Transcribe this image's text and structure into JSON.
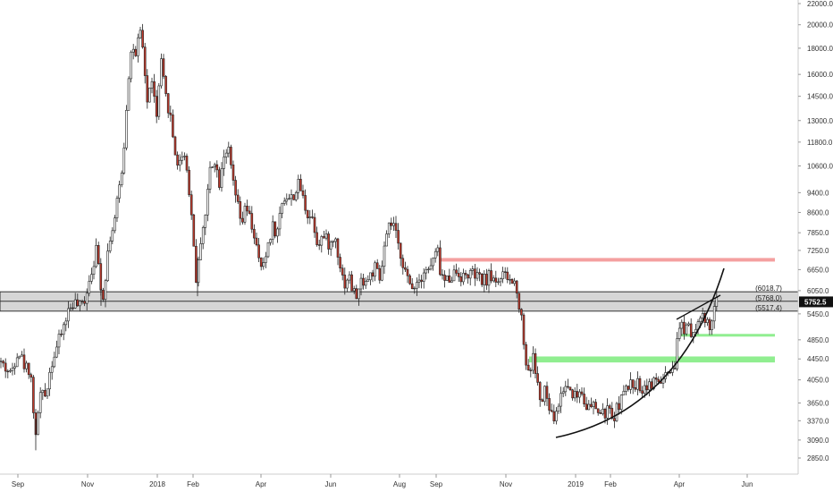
{
  "chart_data": {
    "type": "candlestick",
    "title": "",
    "xlabel": "",
    "ylabel": "",
    "scale": "log",
    "ylim": [
      2650,
      22600
    ],
    "grid": false,
    "x_tick_labels": [
      "Sep",
      "Nov",
      "2018",
      "Feb",
      "Apr",
      "Jun",
      "Aug",
      "Sep",
      "Nov",
      "2019",
      "Feb",
      "Apr",
      "Jun"
    ],
    "y_tick_values": [
      22000,
      20000,
      18000,
      16000,
      14500,
      13000,
      11800,
      10600,
      9400,
      8600,
      7850,
      7250,
      6650,
      6050,
      5450,
      4850,
      4450,
      4050,
      3650,
      3370,
      3090,
      2850
    ],
    "y_tick_labels": [
      "22000.0",
      "20000.0",
      "18000.0",
      "16000.0",
      "14500.0",
      "13000.0",
      "11800.0",
      "10600.0",
      "9400.0",
      "8600.0",
      "7850.0",
      "7250.0",
      "6650.0",
      "6050.0",
      "5450.0",
      "4850.0",
      "4450.0",
      "4050.0",
      "3650.0",
      "3370.0",
      "3090.0",
      "2850.0"
    ],
    "current_price": {
      "value": 5752.5,
      "label": "5752.5"
    },
    "zones": [
      {
        "type": "resistance-band",
        "upper": 6018.7,
        "lower": 5517.4,
        "mid": 5768.0,
        "labels": [
          "(6018.7)",
          "(5768.0)",
          "(5517.4)"
        ],
        "color": "#c8c8c8"
      },
      {
        "type": "resistance-line",
        "level": 6950,
        "color": "#f4a0a0"
      },
      {
        "type": "support-line",
        "level": 4950,
        "color": "#90ee90"
      },
      {
        "type": "support-band",
        "upper": 4500,
        "lower": 4380,
        "color": "#90ee90"
      }
    ],
    "price_path": [
      [
        0,
        4400
      ],
      [
        12,
        4150
      ],
      [
        20,
        4650
      ],
      [
        28,
        4300
      ],
      [
        34,
        4250
      ],
      [
        40,
        3100
      ],
      [
        44,
        3800
      ],
      [
        50,
        3750
      ],
      [
        58,
        4400
      ],
      [
        68,
        4950
      ],
      [
        76,
        5500
      ],
      [
        82,
        5750
      ],
      [
        90,
        5600
      ],
      [
        95,
        5850
      ],
      [
        100,
        6400
      ],
      [
        108,
        7300
      ],
      [
        115,
        5800
      ],
      [
        122,
        7600
      ],
      [
        128,
        8200
      ],
      [
        133,
        9500
      ],
      [
        138,
        11000
      ],
      [
        143,
        15500
      ],
      [
        148,
        18500
      ],
      [
        152,
        17000
      ],
      [
        156,
        19500
      ],
      [
        160,
        17800
      ],
      [
        165,
        14000
      ],
      [
        170,
        15800
      ],
      [
        175,
        13000
      ],
      [
        180,
        17000
      ],
      [
        185,
        14500
      ],
      [
        190,
        13500
      ],
      [
        195,
        11500
      ],
      [
        200,
        10500
      ],
      [
        205,
        11500
      ],
      [
        210,
        10200
      ],
      [
        215,
        8200
      ],
      [
        220,
        6200
      ],
      [
        225,
        7800
      ],
      [
        230,
        8500
      ],
      [
        235,
        10500
      ],
      [
        240,
        11000
      ],
      [
        245,
        9800
      ],
      [
        250,
        11200
      ],
      [
        255,
        11500
      ],
      [
        260,
        10000
      ],
      [
        265,
        9000
      ],
      [
        270,
        8100
      ],
      [
        275,
        8800
      ],
      [
        280,
        8300
      ],
      [
        285,
        7700
      ],
      [
        290,
        6800
      ],
      [
        295,
        6700
      ],
      [
        300,
        7500
      ],
      [
        305,
        8100
      ],
      [
        310,
        7800
      ],
      [
        315,
        9000
      ],
      [
        320,
        9300
      ],
      [
        325,
        9100
      ],
      [
        330,
        9400
      ],
      [
        335,
        9800
      ],
      [
        340,
        9000
      ],
      [
        345,
        8500
      ],
      [
        350,
        8400
      ],
      [
        355,
        7500
      ],
      [
        360,
        7700
      ],
      [
        365,
        7600
      ],
      [
        370,
        7400
      ],
      [
        375,
        7700
      ],
      [
        380,
        6900
      ],
      [
        385,
        6200
      ],
      [
        390,
        6500
      ],
      [
        395,
        6000
      ],
      [
        400,
        5900
      ],
      [
        405,
        6400
      ],
      [
        410,
        6300
      ],
      [
        415,
        6500
      ],
      [
        420,
        6700
      ],
      [
        425,
        6300
      ],
      [
        430,
        7300
      ],
      [
        435,
        8000
      ],
      [
        440,
        8200
      ],
      [
        445,
        7400
      ],
      [
        450,
        7000
      ],
      [
        455,
        6400
      ],
      [
        460,
        6100
      ],
      [
        465,
        6300
      ],
      [
        470,
        6400
      ],
      [
        475,
        6700
      ],
      [
        480,
        6600
      ],
      [
        485,
        7000
      ],
      [
        490,
        7200
      ],
      [
        493,
        6500
      ],
      [
        498,
        6300
      ],
      [
        505,
        6500
      ],
      [
        512,
        6600
      ],
      [
        518,
        6400
      ],
      [
        525,
        6550
      ],
      [
        532,
        6450
      ],
      [
        540,
        6300
      ],
      [
        548,
        6450
      ],
      [
        556,
        6350
      ],
      [
        564,
        6450
      ],
      [
        572,
        6300
      ],
      [
        578,
        6200
      ],
      [
        581,
        5600
      ],
      [
        584,
        5300
      ],
      [
        588,
        4400
      ],
      [
        592,
        4200
      ],
      [
        597,
        4500
      ],
      [
        602,
        3900
      ],
      [
        606,
        3600
      ],
      [
        610,
        3900
      ],
      [
        614,
        3550
      ],
      [
        618,
        3400
      ],
      [
        622,
        3450
      ],
      [
        626,
        3700
      ],
      [
        630,
        3900
      ],
      [
        635,
        3950
      ],
      [
        640,
        3850
      ],
      [
        645,
        3750
      ],
      [
        650,
        3900
      ],
      [
        655,
        3650
      ],
      [
        660,
        3550
      ],
      [
        665,
        3600
      ],
      [
        670,
        3500
      ],
      [
        675,
        3450
      ],
      [
        680,
        3550
      ],
      [
        685,
        3400
      ],
      [
        690,
        3550
      ],
      [
        695,
        3750
      ],
      [
        700,
        3850
      ],
      [
        705,
        3950
      ],
      [
        710,
        4000
      ],
      [
        715,
        3950
      ],
      [
        720,
        3900
      ],
      [
        725,
        4000
      ],
      [
        730,
        3950
      ],
      [
        735,
        4050
      ],
      [
        740,
        4000
      ],
      [
        745,
        4100
      ],
      [
        750,
        4150
      ],
      [
        755,
        4150
      ],
      [
        758,
        5000
      ],
      [
        762,
        5200
      ],
      [
        766,
        5100
      ],
      [
        770,
        5300
      ],
      [
        774,
        5000
      ],
      [
        778,
        5200
      ],
      [
        782,
        5300
      ],
      [
        786,
        5350
      ],
      [
        790,
        5200
      ],
      [
        794,
        5100
      ],
      [
        798,
        5450
      ],
      [
        802,
        5750
      ]
    ]
  }
}
